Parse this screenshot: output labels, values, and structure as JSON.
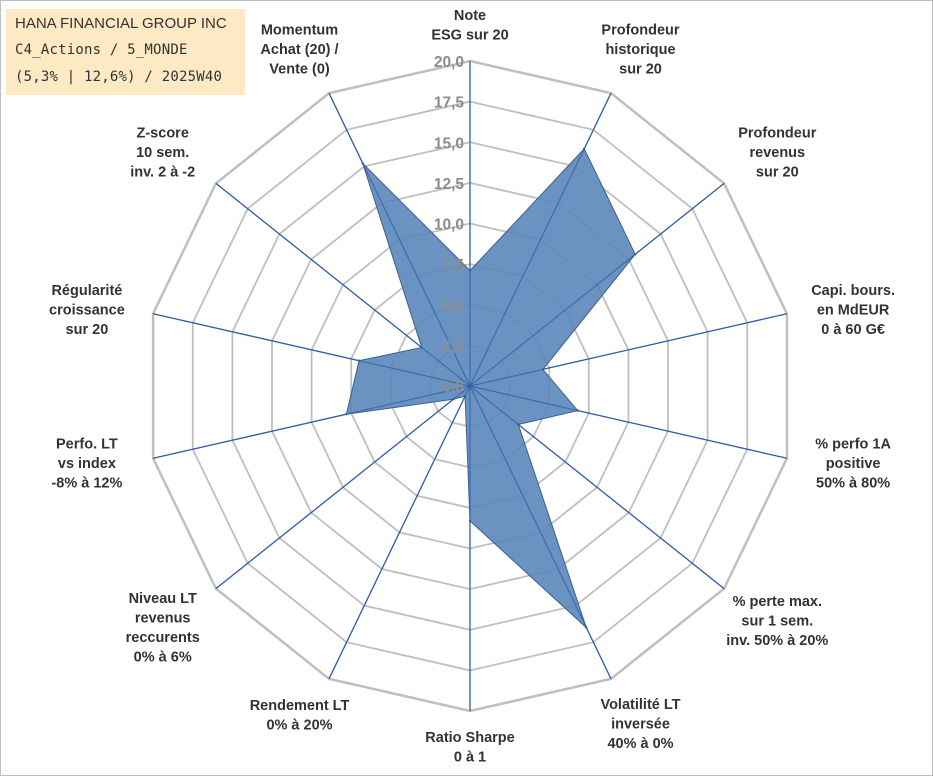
{
  "title": {
    "line1": "HANA FINANCIAL GROUP INC",
    "line2": "C4_Actions / 5_MONDE",
    "line3": "(5,3% | 12,6%) / 2025W40"
  },
  "chart_data": {
    "type": "radar",
    "ylim": [
      0,
      20
    ],
    "tick_step": 2.5,
    "tick_labels": [
      "0,0",
      "2,5",
      "5,0",
      "7,5",
      "10,0",
      "12,5",
      "15,0",
      "17,5",
      "20,0"
    ],
    "grid": true,
    "axes": [
      {
        "label": [
          "Note",
          "ESG sur 20"
        ]
      },
      {
        "label": [
          "Profondeur",
          "historique",
          "sur 20"
        ]
      },
      {
        "label": [
          "Profondeur",
          "revenus",
          "sur 20"
        ]
      },
      {
        "label": [
          "Capi. bours.",
          "en MdEUR",
          "0 à 60 G€"
        ]
      },
      {
        "label": [
          "% perfo 1A",
          "positive",
          "50% à 80%"
        ]
      },
      {
        "label": [
          "% perte max.",
          "sur 1 sem.",
          "inv. 50% à 20%"
        ]
      },
      {
        "label": [
          "Volatilité LT",
          "inversée",
          "40% à 0%"
        ]
      },
      {
        "label": [
          "Ratio Sharpe",
          "0 à 1"
        ]
      },
      {
        "label": [
          "Rendement LT",
          "0% à 20%"
        ]
      },
      {
        "label": [
          "Niveau LT",
          "revenus",
          "reccurents",
          "0% à 6%"
        ]
      },
      {
        "label": [
          "Perfo. LT",
          "vs index",
          "-8% à 12%"
        ]
      },
      {
        "label": [
          "Régularité",
          "croissance",
          "sur 20"
        ]
      },
      {
        "label": [
          "Z-score",
          "10 sem.",
          "inv. 2 à -2"
        ]
      },
      {
        "label": [
          "Momentum",
          "Achat (20) /",
          "Vente (0)"
        ]
      }
    ],
    "series": [
      {
        "values": [
          7.1,
          16.2,
          13.0,
          4.6,
          6.8,
          3.8,
          16.5,
          8.3,
          0.7,
          1.3,
          7.8,
          7.0,
          3.8,
          15.2
        ],
        "color": "#5b87bb",
        "edge_color": "#3f5f8a"
      }
    ],
    "grid_color": "#bfbfbf",
    "spoke_color": "#2f5fa8"
  }
}
